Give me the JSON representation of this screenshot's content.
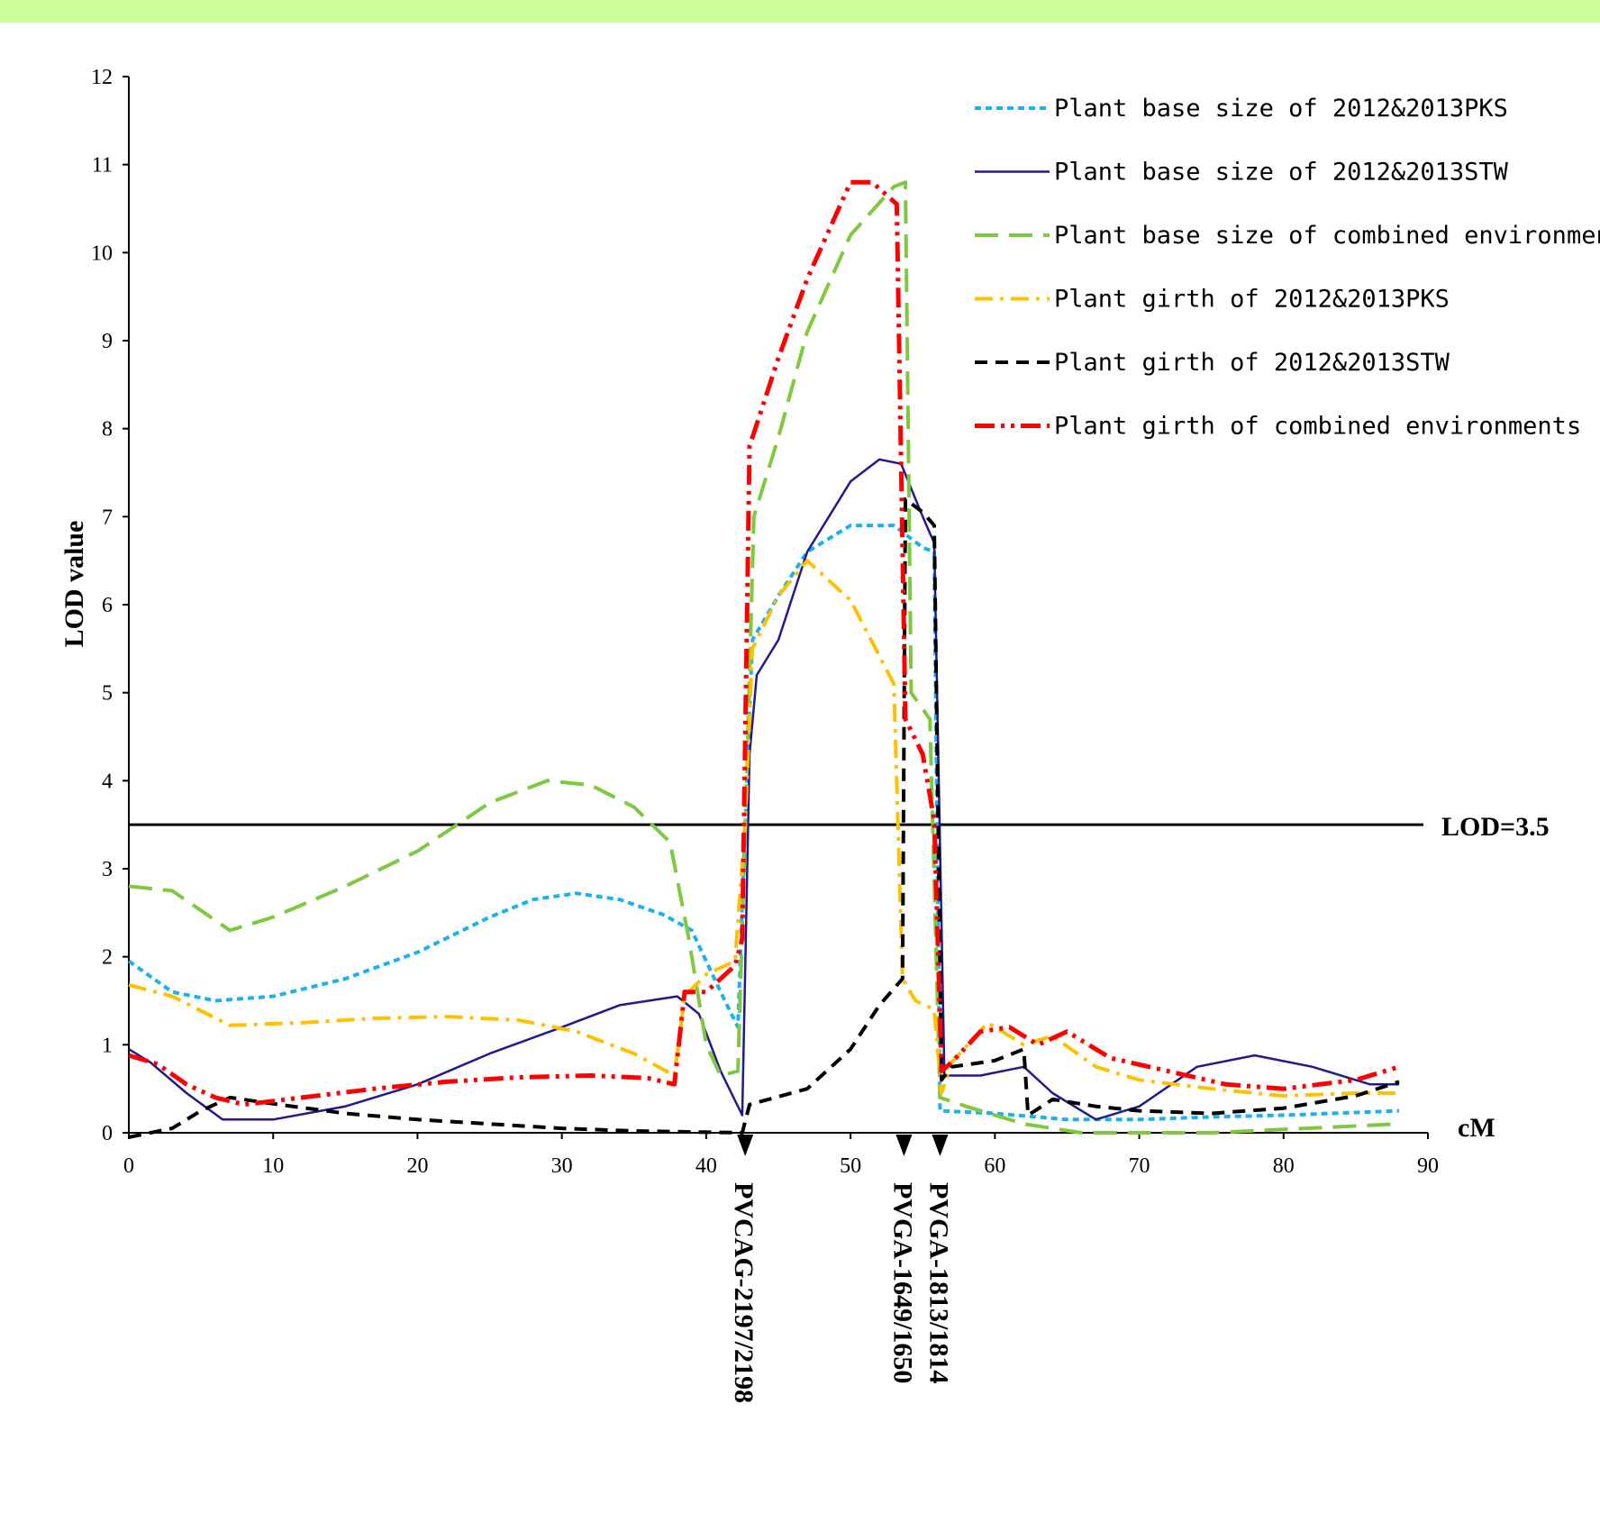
{
  "chart_data": {
    "type": "line",
    "xlabel": "cM",
    "ylabel": "LOD value",
    "xlim": [
      0,
      90
    ],
    "ylim": [
      0,
      12
    ],
    "x_ticks": [
      "0",
      "10",
      "20",
      "30",
      "40",
      "50",
      "60",
      "70",
      "80",
      "90"
    ],
    "y_ticks": [
      "0",
      "1",
      "2",
      "3",
      "4",
      "5",
      "6",
      "7",
      "8",
      "9",
      "10",
      "11",
      "12"
    ],
    "threshold": {
      "value": 3.5,
      "label": "LOD=3.5"
    },
    "markers": [
      {
        "x": 42.7,
        "label": "PVCAG-2197/2198"
      },
      {
        "x": 53.7,
        "label": "PVGA-1649/1650"
      },
      {
        "x": 56.2,
        "label": "PVGA-1813/1814"
      }
    ],
    "legend_position": "top-right",
    "series": [
      {
        "name": "Plant base size of 2012&2013PKS",
        "color": "#1ab2ec",
        "dash": "short-dash",
        "points": [
          [
            0,
            1.95
          ],
          [
            3,
            1.6
          ],
          [
            6,
            1.5
          ],
          [
            10,
            1.55
          ],
          [
            15,
            1.75
          ],
          [
            20,
            2.05
          ],
          [
            25,
            2.45
          ],
          [
            28,
            2.65
          ],
          [
            31,
            2.72
          ],
          [
            34,
            2.65
          ],
          [
            37,
            2.48
          ],
          [
            39,
            2.3
          ],
          [
            41,
            1.6
          ],
          [
            42.2,
            1.2
          ],
          [
            42.7,
            3.5
          ],
          [
            43.2,
            5.6
          ],
          [
            45,
            6.1
          ],
          [
            47,
            6.6
          ],
          [
            50,
            6.9
          ],
          [
            53,
            6.9
          ],
          [
            55,
            6.65
          ],
          [
            55.8,
            6.6
          ],
          [
            56.2,
            0.25
          ],
          [
            60,
            0.22
          ],
          [
            65,
            0.15
          ],
          [
            70,
            0.15
          ],
          [
            75,
            0.18
          ],
          [
            80,
            0.2
          ],
          [
            85,
            0.23
          ],
          [
            88,
            0.25
          ]
        ]
      },
      {
        "name": "Plant base size of 2012&2013STW",
        "color": "#1f1a8f",
        "dash": "solid",
        "points": [
          [
            0,
            0.95
          ],
          [
            1.5,
            0.8
          ],
          [
            4,
            0.45
          ],
          [
            6.5,
            0.15
          ],
          [
            10,
            0.15
          ],
          [
            15,
            0.3
          ],
          [
            20,
            0.55
          ],
          [
            25,
            0.9
          ],
          [
            30,
            1.2
          ],
          [
            34,
            1.45
          ],
          [
            38,
            1.55
          ],
          [
            39.5,
            1.35
          ],
          [
            41,
            0.7
          ],
          [
            42.5,
            0.2
          ],
          [
            43,
            4.3
          ],
          [
            43.5,
            5.2
          ],
          [
            45,
            5.6
          ],
          [
            47,
            6.6
          ],
          [
            50,
            7.4
          ],
          [
            52,
            7.65
          ],
          [
            53.5,
            7.6
          ],
          [
            55,
            7.0
          ],
          [
            55.8,
            6.7
          ],
          [
            56.5,
            0.65
          ],
          [
            59,
            0.65
          ],
          [
            62,
            0.75
          ],
          [
            64,
            0.45
          ],
          [
            67,
            0.15
          ],
          [
            70,
            0.3
          ],
          [
            74,
            0.75
          ],
          [
            78,
            0.88
          ],
          [
            82,
            0.75
          ],
          [
            86,
            0.55
          ],
          [
            88,
            0.55
          ]
        ]
      },
      {
        "name": "Plant base size of combined environment",
        "color": "#7fc93e",
        "dash": "long-dash",
        "points": [
          [
            0,
            2.8
          ],
          [
            3,
            2.75
          ],
          [
            7,
            2.3
          ],
          [
            10,
            2.45
          ],
          [
            15,
            2.8
          ],
          [
            20,
            3.2
          ],
          [
            25,
            3.75
          ],
          [
            29,
            4.0
          ],
          [
            32,
            3.95
          ],
          [
            35,
            3.7
          ],
          [
            37.5,
            3.3
          ],
          [
            38.8,
            2.2
          ],
          [
            40,
            1.0
          ],
          [
            41,
            0.65
          ],
          [
            42.2,
            0.7
          ],
          [
            42.8,
            4.0
          ],
          [
            43.3,
            7.0
          ],
          [
            45,
            7.9
          ],
          [
            47,
            9.1
          ],
          [
            50,
            10.2
          ],
          [
            53,
            10.75
          ],
          [
            53.8,
            10.8
          ],
          [
            54.2,
            5.0
          ],
          [
            55.5,
            4.7
          ],
          [
            56.2,
            0.4
          ],
          [
            58,
            0.3
          ],
          [
            62,
            0.1
          ],
          [
            66,
            0.0
          ],
          [
            75,
            0.0
          ],
          [
            88,
            0.1
          ]
        ]
      },
      {
        "name": "Plant girth of 2012&2013PKS",
        "color": "#ffc000",
        "dash": "dash-dot",
        "points": [
          [
            0,
            1.68
          ],
          [
            3,
            1.55
          ],
          [
            7,
            1.22
          ],
          [
            12,
            1.25
          ],
          [
            17,
            1.3
          ],
          [
            22,
            1.32
          ],
          [
            27,
            1.28
          ],
          [
            31,
            1.15
          ],
          [
            35,
            0.9
          ],
          [
            37.8,
            0.65
          ],
          [
            38.5,
            1.55
          ],
          [
            40,
            1.8
          ],
          [
            42,
            1.95
          ],
          [
            42.7,
            3.5
          ],
          [
            43.2,
            5.5
          ],
          [
            45,
            6.1
          ],
          [
            47,
            6.5
          ],
          [
            50,
            6.05
          ],
          [
            53,
            5.1
          ],
          [
            53.6,
            1.75
          ],
          [
            54.5,
            1.5
          ],
          [
            55.8,
            1.4
          ],
          [
            56.3,
            0.45
          ],
          [
            57,
            0.8
          ],
          [
            59.5,
            1.25
          ],
          [
            62,
            1.0
          ],
          [
            64,
            1.1
          ],
          [
            67,
            0.75
          ],
          [
            70,
            0.6
          ],
          [
            75,
            0.5
          ],
          [
            80,
            0.42
          ],
          [
            85,
            0.45
          ],
          [
            88,
            0.45
          ]
        ]
      },
      {
        "name": "Plant girth of 2012&2013STW",
        "color": "#000000",
        "dash": "dash",
        "points": [
          [
            0,
            -0.05
          ],
          [
            3,
            0.05
          ],
          [
            5,
            0.25
          ],
          [
            7,
            0.4
          ],
          [
            10,
            0.33
          ],
          [
            15,
            0.22
          ],
          [
            20,
            0.15
          ],
          [
            25,
            0.1
          ],
          [
            30,
            0.05
          ],
          [
            35,
            0.02
          ],
          [
            42.5,
            0.0
          ],
          [
            43,
            0.32
          ],
          [
            47,
            0.5
          ],
          [
            50,
            0.95
          ],
          [
            52,
            1.45
          ],
          [
            53.6,
            1.75
          ],
          [
            53.8,
            7.2
          ],
          [
            55,
            7.05
          ],
          [
            55.8,
            6.9
          ],
          [
            56.3,
            0.6
          ],
          [
            57,
            0.75
          ],
          [
            60,
            0.82
          ],
          [
            62,
            0.95
          ],
          [
            62.3,
            0.2
          ],
          [
            64,
            0.38
          ],
          [
            67,
            0.3
          ],
          [
            70,
            0.25
          ],
          [
            75,
            0.22
          ],
          [
            80,
            0.28
          ],
          [
            85,
            0.42
          ],
          [
            88,
            0.58
          ]
        ]
      },
      {
        "name": "Plant girth of combined environments",
        "color": "#ff0000",
        "dash": "dash-dot-dot",
        "points": [
          [
            0,
            0.88
          ],
          [
            2,
            0.78
          ],
          [
            4,
            0.55
          ],
          [
            6,
            0.4
          ],
          [
            8,
            0.32
          ],
          [
            12,
            0.4
          ],
          [
            17,
            0.5
          ],
          [
            22,
            0.58
          ],
          [
            27,
            0.63
          ],
          [
            32,
            0.65
          ],
          [
            36,
            0.62
          ],
          [
            37.8,
            0.55
          ],
          [
            38.5,
            1.6
          ],
          [
            40,
            1.6
          ],
          [
            42,
            1.9
          ],
          [
            42.5,
            2.2
          ],
          [
            43,
            7.8
          ],
          [
            45,
            8.8
          ],
          [
            47,
            9.7
          ],
          [
            50,
            10.8
          ],
          [
            51.5,
            10.8
          ],
          [
            53.2,
            10.55
          ],
          [
            53.8,
            4.7
          ],
          [
            55,
            4.3
          ],
          [
            55.8,
            3.55
          ],
          [
            56.3,
            0.7
          ],
          [
            57,
            0.8
          ],
          [
            59,
            1.15
          ],
          [
            61,
            1.2
          ],
          [
            63,
            1.0
          ],
          [
            65,
            1.15
          ],
          [
            68,
            0.85
          ],
          [
            72,
            0.7
          ],
          [
            76,
            0.55
          ],
          [
            80,
            0.5
          ],
          [
            85,
            0.6
          ],
          [
            88,
            0.75
          ]
        ]
      }
    ]
  }
}
